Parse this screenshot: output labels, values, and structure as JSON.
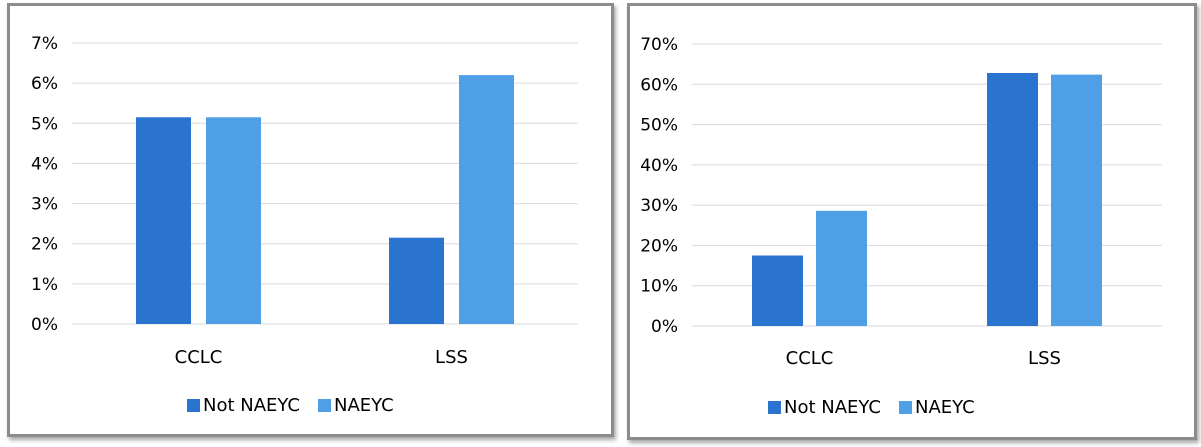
{
  "colors": {
    "not_naeyc": "#2a73cf",
    "naeyc": "#4f9fe7",
    "grid": "#d9d9d9"
  },
  "chart_data": [
    {
      "type": "bar",
      "categories": [
        "CCLC",
        "LSS"
      ],
      "series": [
        {
          "name": "Not NAEYC",
          "values": [
            5.15,
            2.15
          ]
        },
        {
          "name": "NAEYC",
          "values": [
            5.15,
            6.2
          ]
        }
      ],
      "ylim": [
        0,
        7
      ],
      "yticks": [
        "0%",
        "1%",
        "2%",
        "3%",
        "4%",
        "5%",
        "6%",
        "7%"
      ],
      "grid": true,
      "legend": "bottom"
    },
    {
      "type": "bar",
      "categories": [
        "CCLC",
        "LSS"
      ],
      "series": [
        {
          "name": "Not NAEYC",
          "values": [
            17.5,
            62.8
          ]
        },
        {
          "name": "NAEYC",
          "values": [
            28.6,
            62.4
          ]
        }
      ],
      "ylim": [
        0,
        70
      ],
      "yticks": [
        "0%",
        "10%",
        "20%",
        "30%",
        "40%",
        "50%",
        "60%",
        "70%"
      ],
      "grid": true,
      "legend": "bottom"
    }
  ]
}
